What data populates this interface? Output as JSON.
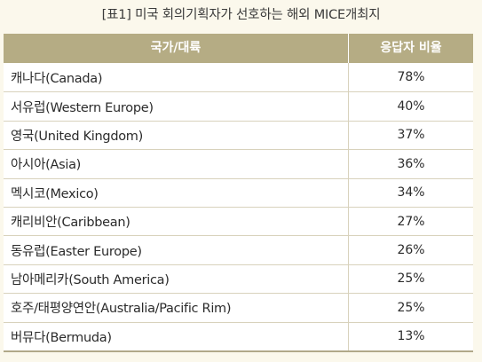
{
  "caption": "[표1] 미국 회의기획자가 선호하는 해외 MICE개최지",
  "table": {
    "headers": [
      "국가/대륙",
      "응답자 비율"
    ],
    "rows": [
      {
        "region": "캐나다(Canada)",
        "ratio": "78%"
      },
      {
        "region": "서유럽(Western Europe)",
        "ratio": "40%"
      },
      {
        "region": "영국(United Kingdom)",
        "ratio": "37%"
      },
      {
        "region": "아시아(Asia)",
        "ratio": "36%"
      },
      {
        "region": "멕시코(Mexico)",
        "ratio": "34%"
      },
      {
        "region": "캐리비안(Caribbean)",
        "ratio": "27%"
      },
      {
        "region": "동유럽(Easter Europe)",
        "ratio": "26%"
      },
      {
        "region": "남아메리카(South America)",
        "ratio": "25%"
      },
      {
        "region": "호주/태평양연안(Australia/Pacific Rim)",
        "ratio": "25%"
      },
      {
        "region": "버뮤다(Bermuda)",
        "ratio": "13%"
      }
    ]
  }
}
